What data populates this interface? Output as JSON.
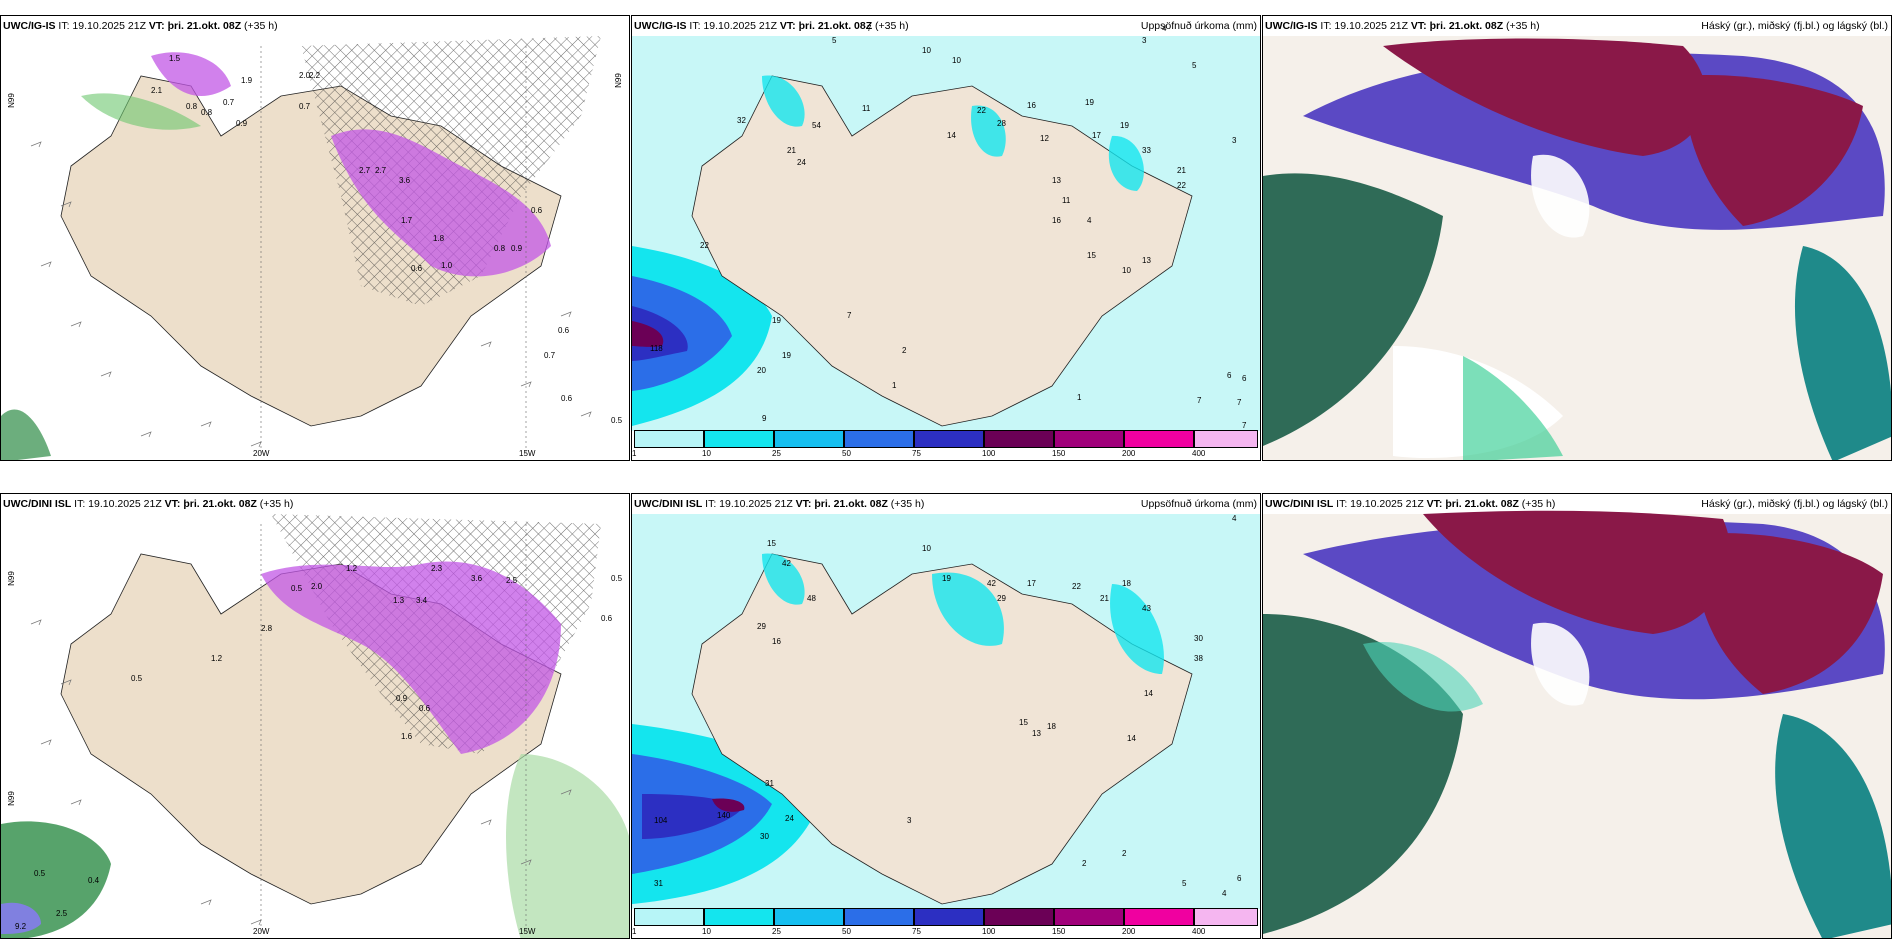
{
  "panels": [
    {
      "model": "UWC/IG-IS",
      "it": "IT: 19.10.2025 21Z",
      "vt_label": "VT:",
      "vt": "þri. 21.okt. 08Z",
      "lead": "(+35 h)",
      "right": "",
      "lat_left": "N99",
      "lat_right": "N99",
      "lon_a": "20W",
      "lon_b": "15W",
      "values": [
        "1.5",
        "2.1",
        "1.9",
        "0.8",
        "0.8",
        "0.9",
        "0.7",
        "0.7",
        "2.0",
        "2.2",
        "0.6",
        "0.6",
        "0.7",
        "0.5",
        "2.7",
        "2.7",
        "3.6",
        "1.7",
        "1.8",
        "0.8",
        "0.9",
        "1.0",
        "0.6",
        "0.6"
      ]
    },
    {
      "model": "UWC/IG-IS",
      "it": "IT: 19.10.2025 21Z",
      "vt_label": "VT:",
      "vt": "þri. 21.okt. 08Z",
      "lead": "(+35 h)",
      "right": "Uppsöfnuð úrkoma (mm)",
      "values": [
        "5",
        "7",
        "10",
        "10",
        "3",
        "4",
        "5",
        "3",
        "32",
        "54",
        "11",
        "21",
        "24",
        "14",
        "22",
        "28",
        "16",
        "19",
        "17",
        "19",
        "33",
        "21",
        "22",
        "12",
        "13",
        "16",
        "11",
        "4",
        "15",
        "13",
        "10",
        "22",
        "19",
        "19",
        "20",
        "118",
        "9",
        "7",
        "2",
        "1",
        "6",
        "6",
        "7",
        "7",
        "7",
        "1"
      ]
    },
    {
      "model": "UWC/IG-IS",
      "it": "IT: 19.10.2025 21Z",
      "vt_label": "VT:",
      "vt": "þri. 21.okt. 08Z",
      "lead": "(+35 h)",
      "right": "Háský (gr.), miðský (fj.bl.) og lágský (bl.)"
    },
    {
      "model": "UWC/DINI ISL",
      "it": "IT: 19.10.2025 21Z",
      "vt_label": "VT:",
      "vt": "þri. 21.okt. 08Z",
      "lead": "(+35 h)",
      "right": "",
      "lat_left": "N99",
      "lat_right": "N99",
      "lon_a": "20W",
      "lon_b": "15W",
      "values": [
        "0.5",
        "2.0",
        "1.2",
        "1.3",
        "3.4",
        "2.3",
        "3.6",
        "2.5",
        "0.5",
        "0.6",
        "2.8",
        "0.9",
        "0.6",
        "1.6",
        "1.2",
        "0.5",
        "0.5",
        "0.4",
        "2.5",
        "9.2"
      ]
    },
    {
      "model": "UWC/DINI ISL",
      "it": "IT: 19.10.2025 21Z",
      "vt_label": "VT:",
      "vt": "þri. 21.okt. 08Z",
      "lead": "(+35 h)",
      "right": "Uppsöfnuð úrkoma (mm)",
      "values": [
        "4",
        "10",
        "15",
        "42",
        "48",
        "29",
        "16",
        "19",
        "42",
        "29",
        "17",
        "22",
        "21",
        "18",
        "43",
        "30",
        "38",
        "14",
        "13",
        "18",
        "15",
        "14",
        "104",
        "140",
        "31",
        "24",
        "30",
        "31",
        "2",
        "3",
        "6",
        "4",
        "5",
        "2"
      ]
    },
    {
      "model": "UWC/DINI ISL",
      "it": "IT: 19.10.2025 21Z",
      "vt_label": "VT:",
      "vt": "þri. 21.okt. 08Z",
      "lead": "(+35 h)",
      "right": "Háský (gr.), miðský (fj.bl.) og lágský (bl.)"
    }
  ],
  "colorbar": {
    "ticks": [
      "1",
      "10",
      "25",
      "50",
      "75",
      "100",
      "150",
      "200",
      "400"
    ],
    "colors": [
      "#b7f5f7",
      "#14e5ee",
      "#16bff0",
      "#2b6ee8",
      "#2c2fc2",
      "#6b0056",
      "#a0007a",
      "#f000a0",
      "#f5b6f0"
    ]
  }
}
